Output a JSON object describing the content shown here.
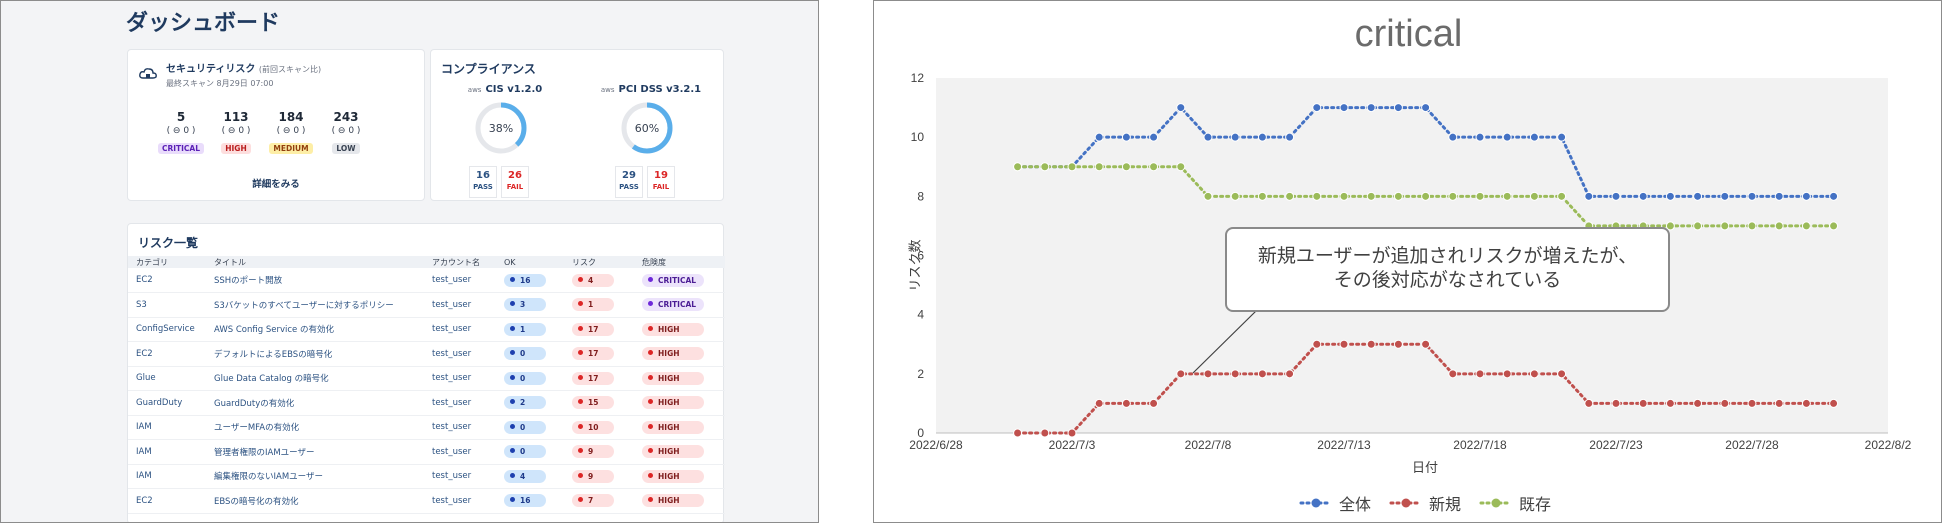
{
  "dashboard": {
    "title": "ダッシュボード",
    "security_risk": {
      "title": "セキュリティリスク",
      "title_note": "(前回スキャン比)",
      "last_scan": "最終スキャン 8月29日 07:00",
      "severities": [
        {
          "count": "5",
          "delta": "( ⊖ 0 )",
          "label": "CRITICAL",
          "color": "#e9dcfb",
          "text_color": "#5b21b6"
        },
        {
          "count": "113",
          "delta": "( ⊖ 0 )",
          "label": "HIGH",
          "color": "#fddede",
          "text_color": "#b91c1c"
        },
        {
          "count": "184",
          "delta": "( ⊖ 0 )",
          "label": "MEDIUM",
          "color": "#fdeea6",
          "text_color": "#92400e"
        },
        {
          "count": "243",
          "delta": "( ⊖ 0 )",
          "label": "LOW",
          "color": "#e5e7eb",
          "text_color": "#374151"
        }
      ],
      "details_link": "詳細をみる"
    },
    "compliance": {
      "title": "コンプライアンス",
      "frameworks": [
        {
          "aws": "aws",
          "name": "CIS v1.2.0",
          "percent_label": "38%",
          "percent": 38,
          "pass": "16",
          "fail": "26"
        },
        {
          "aws": "aws",
          "name": "PCI DSS v3.2.1",
          "percent_label": "60%",
          "percent": 60,
          "pass": "29",
          "fail": "19"
        }
      ],
      "pass_label": "PASS",
      "fail_label": "FAIL"
    },
    "risk_list": {
      "title": "リスク一覧",
      "columns": [
        "カテゴリ",
        "タイトル",
        "アカウント名",
        "OK",
        "リスク",
        "危険度"
      ],
      "rows": [
        {
          "category": "EC2",
          "title": "SSHのポート開放",
          "account": "test_user",
          "ok": "16",
          "risk": "4",
          "severity": "CRITICAL"
        },
        {
          "category": "S3",
          "title": "S3バケットのすべてユーザーに対するポリシー",
          "account": "test_user",
          "ok": "3",
          "risk": "1",
          "severity": "CRITICAL"
        },
        {
          "category": "ConfigService",
          "title": "AWS Config Service の有効化",
          "account": "test_user",
          "ok": "1",
          "risk": "17",
          "severity": "HIGH"
        },
        {
          "category": "EC2",
          "title": "デフォルトによるEBSの暗号化",
          "account": "test_user",
          "ok": "0",
          "risk": "17",
          "severity": "HIGH"
        },
        {
          "category": "Glue",
          "title": "Glue Data Catalog の暗号化",
          "account": "test_user",
          "ok": "0",
          "risk": "17",
          "severity": "HIGH"
        },
        {
          "category": "GuardDuty",
          "title": "GuardDutyの有効化",
          "account": "test_user",
          "ok": "2",
          "risk": "15",
          "severity": "HIGH"
        },
        {
          "category": "IAM",
          "title": "ユーザーMFAの有効化",
          "account": "test_user",
          "ok": "0",
          "risk": "10",
          "severity": "HIGH"
        },
        {
          "category": "IAM",
          "title": "管理者権限のIAMユーザー",
          "account": "test_user",
          "ok": "0",
          "risk": "9",
          "severity": "HIGH"
        },
        {
          "category": "IAM",
          "title": "編集権限のないIAMユーザー",
          "account": "test_user",
          "ok": "4",
          "risk": "9",
          "severity": "HIGH"
        },
        {
          "category": "EC2",
          "title": "EBSの暗号化の有効化",
          "account": "test_user",
          "ok": "16",
          "risk": "7",
          "severity": "HIGH"
        }
      ]
    }
  },
  "chart_data": {
    "type": "line",
    "title": "critical",
    "xlabel": "日付",
    "ylabel": "リスク数",
    "x_ticks": [
      "2022/6/28",
      "2022/7/3",
      "2022/7/8",
      "2022/7/13",
      "2022/7/18",
      "2022/7/23",
      "2022/7/28",
      "2022/8/2"
    ],
    "xlim": [
      "2022/6/28",
      "2022/8/2"
    ],
    "ylim": [
      0,
      12
    ],
    "y_ticks": [
      0,
      2,
      4,
      6,
      8,
      10,
      12
    ],
    "grid": false,
    "legend_position": "bottom",
    "x": [
      "2022/7/1",
      "2022/7/2",
      "2022/7/3",
      "2022/7/4",
      "2022/7/5",
      "2022/7/6",
      "2022/7/7",
      "2022/7/8",
      "2022/7/9",
      "2022/7/10",
      "2022/7/11",
      "2022/7/12",
      "2022/7/13",
      "2022/7/14",
      "2022/7/15",
      "2022/7/16",
      "2022/7/17",
      "2022/7/18",
      "2022/7/19",
      "2022/7/20",
      "2022/7/21",
      "2022/7/22",
      "2022/7/23",
      "2022/7/24",
      "2022/7/25",
      "2022/7/26",
      "2022/7/27",
      "2022/7/28",
      "2022/7/29",
      "2022/7/30",
      "2022/7/31"
    ],
    "series": [
      {
        "name": "全体",
        "color": "#4472c4",
        "values": [
          9,
          9,
          9,
          10,
          10,
          10,
          11,
          10,
          10,
          10,
          10,
          11,
          11,
          11,
          11,
          11,
          10,
          10,
          10,
          10,
          10,
          8,
          8,
          8,
          8,
          8,
          8,
          8,
          8,
          8,
          8
        ]
      },
      {
        "name": "新規",
        "color": "#c0504d",
        "values": [
          0,
          0,
          0,
          1,
          1,
          1,
          2,
          2,
          2,
          2,
          2,
          3,
          3,
          3,
          3,
          3,
          2,
          2,
          2,
          2,
          2,
          1,
          1,
          1,
          1,
          1,
          1,
          1,
          1,
          1,
          1
        ]
      },
      {
        "name": "既存",
        "color": "#9bbb59",
        "values": [
          9,
          9,
          9,
          9,
          9,
          9,
          9,
          8,
          8,
          8,
          8,
          8,
          8,
          8,
          8,
          8,
          8,
          8,
          8,
          8,
          8,
          7,
          7,
          7,
          7,
          7,
          7,
          7,
          7,
          7,
          7
        ]
      }
    ],
    "annotation": {
      "line1": "新規ユーザーが追加されリスクが増えたが、",
      "line2": "その後対応がなされている"
    }
  }
}
